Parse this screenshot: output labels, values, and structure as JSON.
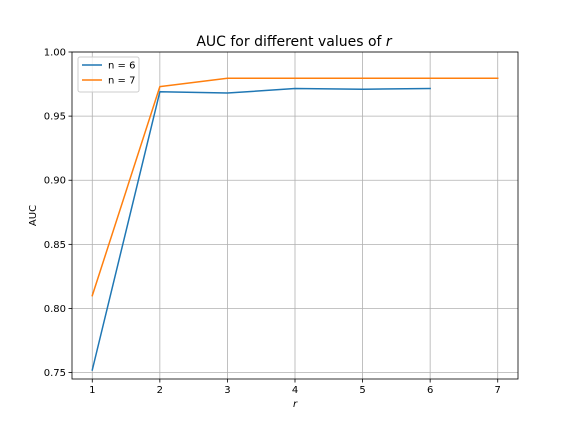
{
  "chart_data": {
    "type": "line",
    "title_prefix": "AUC for different values of ",
    "title_var": "r",
    "xlabel": "r",
    "ylabel": "AUC",
    "xlim": [
      0.7,
      7.3
    ],
    "ylim": [
      0.745,
      1.0
    ],
    "x_ticks": [
      1,
      2,
      3,
      4,
      5,
      6,
      7
    ],
    "x_tick_labels": [
      "1",
      "2",
      "3",
      "4",
      "5",
      "6",
      "7"
    ],
    "y_ticks": [
      0.75,
      0.8,
      0.85,
      0.9,
      0.95,
      1.0
    ],
    "y_tick_labels": [
      "0.75",
      "0.80",
      "0.85",
      "0.90",
      "0.95",
      "1.00"
    ],
    "grid": true,
    "legend_position": "top-left",
    "series": [
      {
        "name": "n = 6",
        "color": "#1f77b4",
        "x": [
          1,
          2,
          3,
          4,
          5,
          6
        ],
        "y": [
          0.752,
          0.969,
          0.968,
          0.9715,
          0.971,
          0.9715
        ]
      },
      {
        "name": "n = 7",
        "color": "#ff7f0e",
        "x": [
          1,
          2,
          3,
          4,
          5,
          6,
          7
        ],
        "y": [
          0.81,
          0.973,
          0.9795,
          0.9795,
          0.9795,
          0.9795,
          0.9795
        ]
      }
    ]
  }
}
